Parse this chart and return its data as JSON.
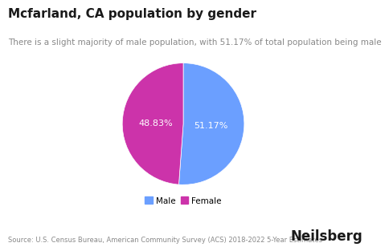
{
  "title": "Mcfarland, CA population by gender",
  "subtitle": "There is a slight majority of male population, with 51.17% of total population being male",
  "slices": [
    51.17,
    48.83
  ],
  "labels": [
    "51.17%",
    "48.83%"
  ],
  "legend_labels": [
    "Male",
    "Female"
  ],
  "colors": [
    "#6B9FFF",
    "#CC33AA"
  ],
  "source": "Source: U.S. Census Bureau, American Community Survey (ACS) 2018-2022 5-Year Estimates",
  "brand": "Neilsberg",
  "background_color": "#ffffff",
  "title_fontsize": 11,
  "subtitle_fontsize": 7.5,
  "label_fontsize": 8,
  "source_fontsize": 6,
  "brand_fontsize": 12
}
